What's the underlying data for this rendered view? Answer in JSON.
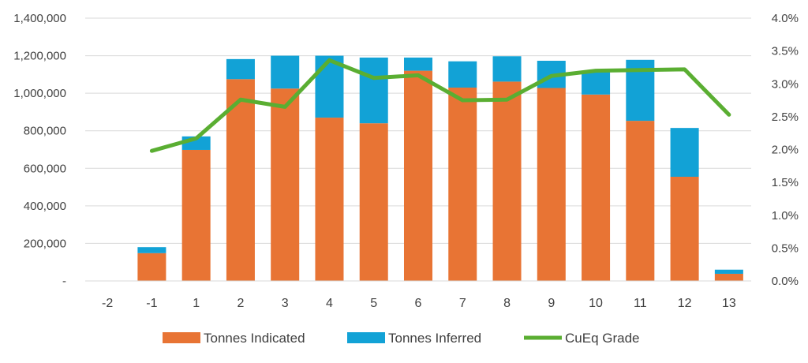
{
  "chart_data": {
    "type": "bar",
    "stacked": true,
    "categories": [
      "-2",
      "-1",
      "1",
      "2",
      "3",
      "4",
      "5",
      "6",
      "7",
      "8",
      "9",
      "10",
      "11",
      "12",
      "13"
    ],
    "series": [
      {
        "name": "Tonnes Indicated",
        "type": "bar",
        "axis": "left",
        "color": "#E87434",
        "values": [
          0,
          148000,
          698000,
          1075000,
          1025000,
          870000,
          840000,
          1120000,
          1030000,
          1062000,
          1028000,
          993000,
          853000,
          555000,
          38000
        ]
      },
      {
        "name": "Tonnes Inferred",
        "type": "bar",
        "axis": "left",
        "color": "#12A2D6",
        "values": [
          0,
          32000,
          72000,
          107000,
          175000,
          330000,
          350000,
          70000,
          140000,
          135000,
          145000,
          127000,
          325000,
          260000,
          22000
        ]
      },
      {
        "name": "CuEq Grade",
        "type": "line",
        "axis": "right",
        "color": "#5AAE32",
        "values": [
          null,
          0.0198,
          0.0217,
          0.0276,
          0.0265,
          0.0336,
          0.0309,
          0.0313,
          0.0275,
          0.0276,
          0.0312,
          0.032,
          0.0321,
          0.0322,
          0.0253
        ]
      }
    ],
    "y_left": {
      "ylim": [
        0,
        1400000
      ],
      "ticks": [
        0,
        200000,
        400000,
        600000,
        800000,
        1000000,
        1200000,
        1400000
      ],
      "tick_labels": [
        "-",
        "200,000",
        "400,000",
        "600,000",
        "800,000",
        "1,000,000",
        "1,200,000",
        "1,400,000"
      ]
    },
    "y_right": {
      "ylim": [
        0,
        0.04
      ],
      "ticks": [
        0,
        0.005,
        0.01,
        0.015,
        0.02,
        0.025,
        0.03,
        0.035,
        0.04
      ],
      "tick_labels": [
        "0.0%",
        "0.5%",
        "1.0%",
        "1.5%",
        "2.0%",
        "2.5%",
        "3.0%",
        "3.5%",
        "4.0%"
      ]
    },
    "grid": true,
    "legend": "bottom",
    "title": "",
    "xlabel": "",
    "ylabel": ""
  }
}
